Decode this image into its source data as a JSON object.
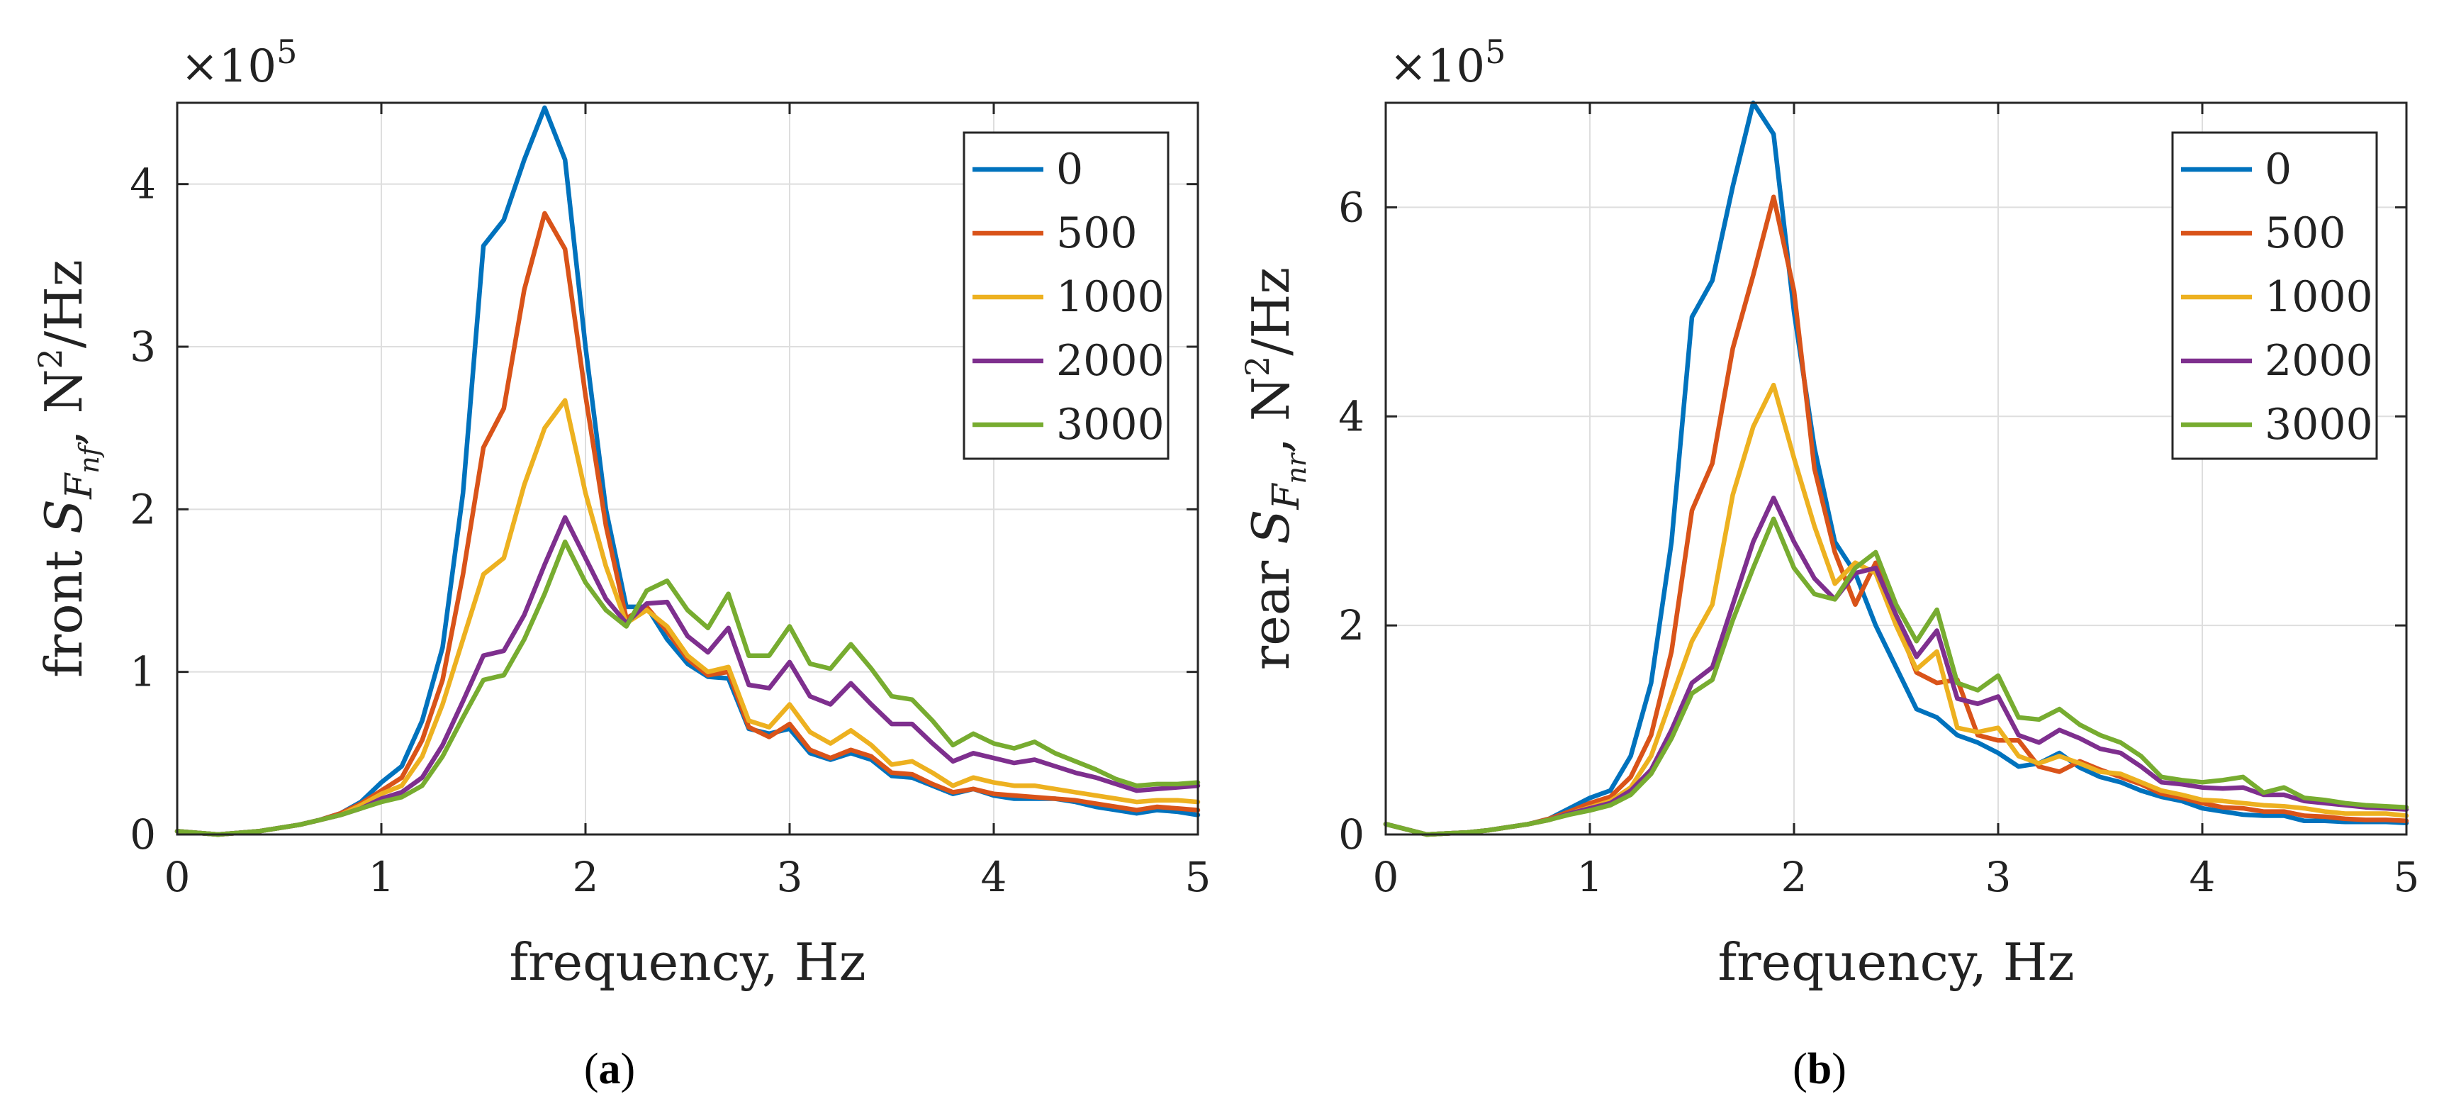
{
  "chart_data": [
    {
      "type": "line",
      "panel": "a",
      "caption": {
        "open": "(",
        "letter": "a",
        "close": ")"
      },
      "exponent_label": {
        "prefix": "×10",
        "power": "5"
      },
      "xlabel": "frequency, Hz",
      "ylabel": {
        "prefix": "front ",
        "symbol": "S",
        "sub_f": "F",
        "sub_sub": "nf",
        "suffix": ", N",
        "power": "2",
        "unit": "/Hz"
      },
      "xlim": [
        0,
        5
      ],
      "ylim": [
        0,
        4.5
      ],
      "xticks": [
        0,
        1,
        2,
        3,
        4,
        5
      ],
      "yticks": [
        0,
        1,
        2,
        3,
        4
      ],
      "legend_position": "top-right",
      "x": [
        0,
        0.1,
        0.2,
        0.3,
        0.4,
        0.5,
        0.6,
        0.7,
        0.8,
        0.9,
        1.0,
        1.1,
        1.2,
        1.3,
        1.4,
        1.5,
        1.6,
        1.7,
        1.8,
        1.9,
        2.0,
        2.1,
        2.2,
        2.3,
        2.4,
        2.5,
        2.6,
        2.7,
        2.8,
        2.9,
        3.0,
        3.1,
        3.2,
        3.3,
        3.4,
        3.5,
        3.6,
        3.7,
        3.8,
        3.9,
        4.0,
        4.1,
        4.2,
        4.3,
        4.4,
        4.5,
        4.6,
        4.7,
        4.8,
        4.9,
        5.0
      ],
      "series": [
        {
          "name": "0",
          "color": "#0072BD",
          "values": [
            0.02,
            0.01,
            0.0,
            0.01,
            0.02,
            0.04,
            0.06,
            0.09,
            0.13,
            0.2,
            0.32,
            0.42,
            0.7,
            1.15,
            2.1,
            3.62,
            3.78,
            4.15,
            4.47,
            4.15,
            3.0,
            2.0,
            1.4,
            1.4,
            1.2,
            1.05,
            0.97,
            0.96,
            0.65,
            0.62,
            0.65,
            0.5,
            0.46,
            0.5,
            0.46,
            0.36,
            0.35,
            0.3,
            0.25,
            0.28,
            0.24,
            0.22,
            0.22,
            0.22,
            0.2,
            0.17,
            0.15,
            0.13,
            0.15,
            0.14,
            0.12
          ]
        },
        {
          "name": "500",
          "color": "#D95319",
          "values": [
            0.02,
            0.01,
            0.0,
            0.01,
            0.02,
            0.04,
            0.06,
            0.09,
            0.13,
            0.19,
            0.27,
            0.35,
            0.58,
            0.95,
            1.6,
            2.38,
            2.62,
            3.35,
            3.82,
            3.6,
            2.7,
            1.9,
            1.33,
            1.4,
            1.25,
            1.08,
            0.98,
            1.0,
            0.66,
            0.6,
            0.68,
            0.52,
            0.47,
            0.52,
            0.48,
            0.38,
            0.37,
            0.31,
            0.26,
            0.28,
            0.25,
            0.24,
            0.23,
            0.22,
            0.21,
            0.19,
            0.17,
            0.15,
            0.17,
            0.16,
            0.15
          ]
        },
        {
          "name": "1000",
          "color": "#EDB120",
          "values": [
            0.02,
            0.01,
            0.0,
            0.01,
            0.02,
            0.04,
            0.06,
            0.09,
            0.12,
            0.18,
            0.25,
            0.3,
            0.48,
            0.8,
            1.2,
            1.6,
            1.7,
            2.15,
            2.5,
            2.67,
            2.1,
            1.65,
            1.3,
            1.38,
            1.28,
            1.1,
            1.0,
            1.03,
            0.7,
            0.66,
            0.8,
            0.63,
            0.56,
            0.64,
            0.55,
            0.43,
            0.45,
            0.38,
            0.3,
            0.35,
            0.32,
            0.3,
            0.3,
            0.28,
            0.26,
            0.24,
            0.22,
            0.2,
            0.21,
            0.21,
            0.2
          ]
        },
        {
          "name": "2000",
          "color": "#7E2F8E",
          "values": [
            0.02,
            0.01,
            0.0,
            0.01,
            0.02,
            0.04,
            0.06,
            0.09,
            0.12,
            0.16,
            0.22,
            0.26,
            0.35,
            0.55,
            0.82,
            1.1,
            1.13,
            1.35,
            1.66,
            1.95,
            1.7,
            1.45,
            1.3,
            1.42,
            1.43,
            1.22,
            1.12,
            1.27,
            0.92,
            0.9,
            1.06,
            0.85,
            0.8,
            0.93,
            0.8,
            0.68,
            0.68,
            0.56,
            0.45,
            0.5,
            0.47,
            0.44,
            0.46,
            0.42,
            0.38,
            0.35,
            0.31,
            0.27,
            0.28,
            0.29,
            0.3
          ]
        },
        {
          "name": "3000",
          "color": "#77AC30",
          "values": [
            0.02,
            0.01,
            0.0,
            0.01,
            0.02,
            0.04,
            0.06,
            0.09,
            0.12,
            0.16,
            0.2,
            0.23,
            0.3,
            0.48,
            0.72,
            0.95,
            0.98,
            1.2,
            1.48,
            1.8,
            1.55,
            1.38,
            1.28,
            1.5,
            1.56,
            1.38,
            1.27,
            1.48,
            1.1,
            1.1,
            1.28,
            1.05,
            1.02,
            1.17,
            1.02,
            0.85,
            0.83,
            0.7,
            0.55,
            0.62,
            0.56,
            0.53,
            0.57,
            0.5,
            0.45,
            0.4,
            0.34,
            0.3,
            0.31,
            0.31,
            0.32
          ]
        }
      ]
    },
    {
      "type": "line",
      "panel": "b",
      "caption": {
        "open": "(",
        "letter": "b",
        "close": ")"
      },
      "exponent_label": {
        "prefix": "×10",
        "power": "5"
      },
      "xlabel": "frequency, Hz",
      "ylabel": {
        "prefix": "rear ",
        "symbol": "S",
        "sub_f": "F",
        "sub_sub": "nr",
        "suffix": ", N",
        "power": "2",
        "unit": "/Hz"
      },
      "xlim": [
        0,
        5
      ],
      "ylim": [
        0,
        7
      ],
      "xticks": [
        0,
        1,
        2,
        3,
        4,
        5
      ],
      "yticks": [
        0,
        2,
        4,
        6
      ],
      "legend_position": "top-right",
      "x": [
        0,
        0.1,
        0.2,
        0.3,
        0.4,
        0.5,
        0.6,
        0.7,
        0.8,
        0.9,
        1.0,
        1.1,
        1.2,
        1.3,
        1.4,
        1.5,
        1.6,
        1.7,
        1.8,
        1.9,
        2.0,
        2.1,
        2.2,
        2.3,
        2.4,
        2.5,
        2.6,
        2.7,
        2.8,
        2.9,
        3.0,
        3.1,
        3.2,
        3.3,
        3.4,
        3.5,
        3.6,
        3.7,
        3.8,
        3.9,
        4.0,
        4.1,
        4.2,
        4.3,
        4.4,
        4.5,
        4.6,
        4.7,
        4.8,
        4.9,
        5.0
      ],
      "series": [
        {
          "name": "0",
          "color": "#0072BD",
          "values": [
            0.1,
            0.05,
            0.0,
            0.01,
            0.02,
            0.04,
            0.07,
            0.1,
            0.15,
            0.25,
            0.35,
            0.42,
            0.75,
            1.45,
            2.8,
            4.95,
            5.3,
            6.2,
            7.0,
            6.7,
            5.0,
            3.7,
            2.8,
            2.5,
            2.0,
            1.6,
            1.2,
            1.12,
            0.95,
            0.88,
            0.78,
            0.65,
            0.68,
            0.78,
            0.64,
            0.55,
            0.5,
            0.42,
            0.36,
            0.32,
            0.25,
            0.22,
            0.19,
            0.18,
            0.18,
            0.13,
            0.13,
            0.12,
            0.12,
            0.12,
            0.11
          ]
        },
        {
          "name": "500",
          "color": "#D95319",
          "values": [
            0.1,
            0.05,
            0.0,
            0.01,
            0.02,
            0.04,
            0.07,
            0.1,
            0.15,
            0.22,
            0.3,
            0.36,
            0.55,
            0.95,
            1.75,
            3.1,
            3.55,
            4.65,
            5.35,
            6.1,
            5.2,
            3.5,
            2.7,
            2.2,
            2.6,
            2.05,
            1.55,
            1.45,
            1.48,
            0.95,
            0.9,
            0.9,
            0.65,
            0.6,
            0.7,
            0.62,
            0.55,
            0.48,
            0.39,
            0.35,
            0.3,
            0.26,
            0.25,
            0.22,
            0.22,
            0.18,
            0.17,
            0.15,
            0.14,
            0.14,
            0.13
          ]
        },
        {
          "name": "1000",
          "color": "#EDB120",
          "values": [
            0.1,
            0.05,
            0.0,
            0.01,
            0.02,
            0.04,
            0.07,
            0.1,
            0.14,
            0.2,
            0.26,
            0.32,
            0.45,
            0.75,
            1.3,
            1.85,
            2.2,
            3.25,
            3.9,
            4.3,
            3.6,
            2.95,
            2.4,
            2.6,
            2.5,
            2.0,
            1.58,
            1.75,
            1.02,
            0.98,
            1.02,
            0.75,
            0.68,
            0.75,
            0.68,
            0.6,
            0.58,
            0.5,
            0.42,
            0.38,
            0.33,
            0.32,
            0.3,
            0.28,
            0.27,
            0.25,
            0.22,
            0.2,
            0.2,
            0.2,
            0.18
          ]
        },
        {
          "name": "2000",
          "color": "#7E2F8E",
          "values": [
            0.1,
            0.05,
            0.0,
            0.01,
            0.02,
            0.04,
            0.07,
            0.1,
            0.14,
            0.2,
            0.25,
            0.3,
            0.42,
            0.62,
            1.0,
            1.45,
            1.6,
            2.2,
            2.8,
            3.22,
            2.8,
            2.45,
            2.25,
            2.5,
            2.55,
            2.1,
            1.7,
            1.95,
            1.3,
            1.25,
            1.32,
            0.95,
            0.88,
            1.0,
            0.92,
            0.82,
            0.78,
            0.65,
            0.5,
            0.48,
            0.45,
            0.44,
            0.45,
            0.38,
            0.38,
            0.32,
            0.3,
            0.28,
            0.26,
            0.25,
            0.24
          ]
        },
        {
          "name": "3000",
          "color": "#77AC30",
          "values": [
            0.1,
            0.05,
            0.0,
            0.01,
            0.02,
            0.04,
            0.07,
            0.1,
            0.14,
            0.19,
            0.23,
            0.28,
            0.38,
            0.58,
            0.92,
            1.35,
            1.48,
            2.05,
            2.55,
            3.02,
            2.55,
            2.3,
            2.25,
            2.55,
            2.7,
            2.2,
            1.85,
            2.15,
            1.45,
            1.38,
            1.52,
            1.12,
            1.1,
            1.2,
            1.05,
            0.95,
            0.88,
            0.75,
            0.55,
            0.52,
            0.5,
            0.52,
            0.55,
            0.4,
            0.45,
            0.35,
            0.33,
            0.3,
            0.28,
            0.27,
            0.26
          ]
        }
      ]
    }
  ]
}
